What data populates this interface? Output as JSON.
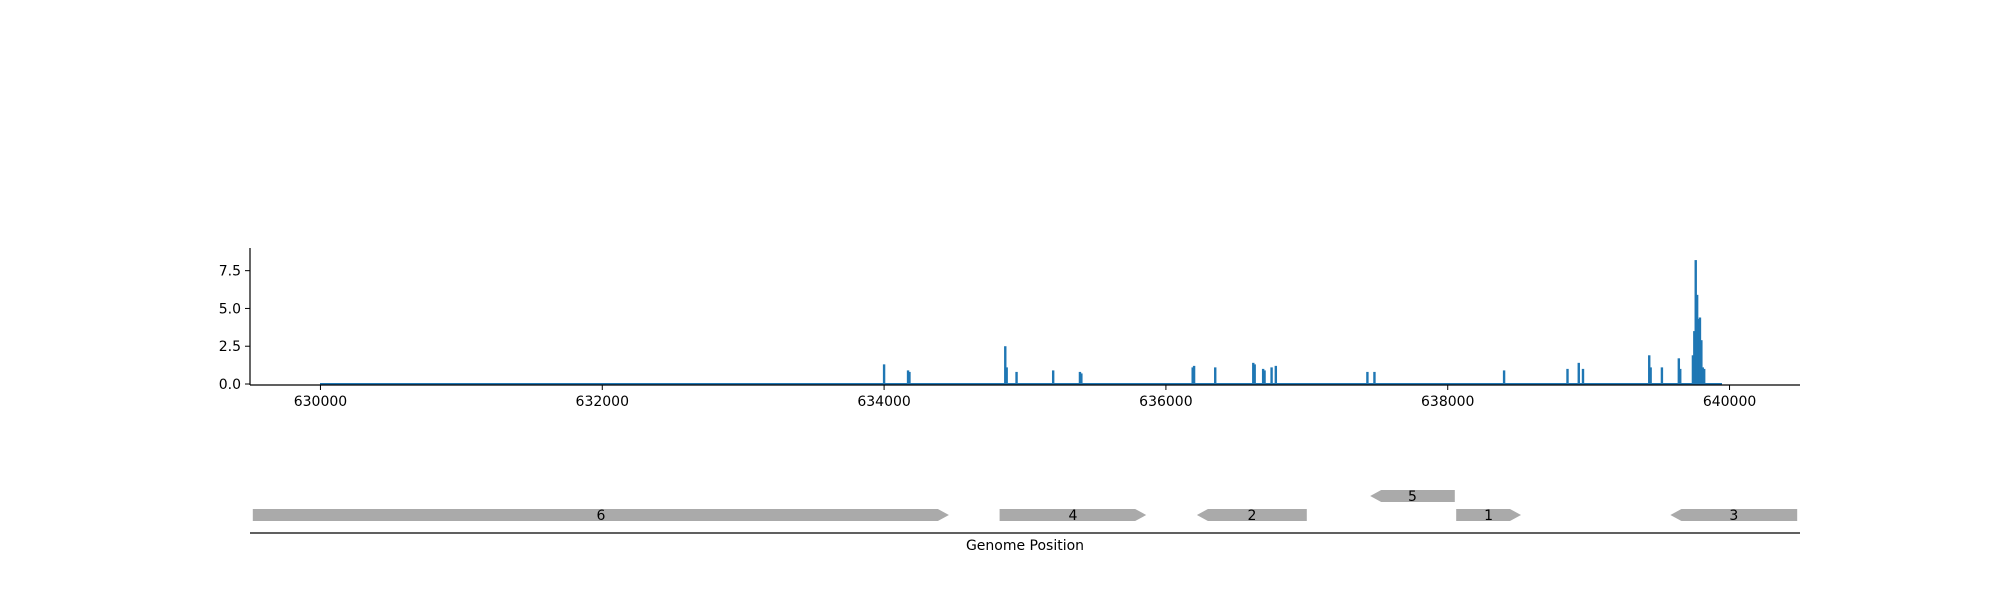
{
  "chart_data": [
    {
      "type": "bar",
      "xlabel": "",
      "ylabel": "",
      "xlim": [
        629500,
        640500
      ],
      "ylim": [
        0,
        9
      ],
      "x_ticks": [
        630000,
        632000,
        634000,
        636000,
        638000,
        640000
      ],
      "x_tick_labels": [
        "630000",
        "632000",
        "634000",
        "636000",
        "638000",
        "640000"
      ],
      "y_ticks": [
        0,
        2.5,
        5,
        7.5
      ],
      "y_tick_labels": [
        "0.0",
        "2.5",
        "5.0",
        "7.5"
      ],
      "grid": false,
      "color": "#1f77b4",
      "points": [
        {
          "x": 634000,
          "y": 1.3
        },
        {
          "x": 634170,
          "y": 0.9
        },
        {
          "x": 634180,
          "y": 0.8
        },
        {
          "x": 634860,
          "y": 2.5
        },
        {
          "x": 634870,
          "y": 1.1
        },
        {
          "x": 634940,
          "y": 0.8
        },
        {
          "x": 635200,
          "y": 0.9
        },
        {
          "x": 635390,
          "y": 0.8
        },
        {
          "x": 635400,
          "y": 0.7
        },
        {
          "x": 636190,
          "y": 1.1
        },
        {
          "x": 636200,
          "y": 1.2
        },
        {
          "x": 636350,
          "y": 1.1
        },
        {
          "x": 636620,
          "y": 1.4
        },
        {
          "x": 636630,
          "y": 1.3
        },
        {
          "x": 636690,
          "y": 1.0
        },
        {
          "x": 636700,
          "y": 0.9
        },
        {
          "x": 636750,
          "y": 1.1
        },
        {
          "x": 636780,
          "y": 1.2
        },
        {
          "x": 637430,
          "y": 0.8
        },
        {
          "x": 637480,
          "y": 0.8
        },
        {
          "x": 638400,
          "y": 0.9
        },
        {
          "x": 638850,
          "y": 1.0
        },
        {
          "x": 638930,
          "y": 1.4
        },
        {
          "x": 638960,
          "y": 1.0
        },
        {
          "x": 639430,
          "y": 1.9
        },
        {
          "x": 639440,
          "y": 1.1
        },
        {
          "x": 639520,
          "y": 1.1
        },
        {
          "x": 639640,
          "y": 1.7
        },
        {
          "x": 639650,
          "y": 1.0
        },
        {
          "x": 639740,
          "y": 1.9
        },
        {
          "x": 639750,
          "y": 3.5
        },
        {
          "x": 639760,
          "y": 8.2
        },
        {
          "x": 639770,
          "y": 5.9
        },
        {
          "x": 639780,
          "y": 4.3
        },
        {
          "x": 639790,
          "y": 4.4
        },
        {
          "x": 639800,
          "y": 2.9
        },
        {
          "x": 639810,
          "y": 1.1
        },
        {
          "x": 639820,
          "y": 1.0
        }
      ]
    },
    {
      "type": "gene-track",
      "xlabel": "Genome Position",
      "color": "#aaaaaa",
      "genes": [
        {
          "label": "6",
          "start": 629520,
          "end": 634460,
          "strand": "+",
          "row": 0
        },
        {
          "label": "4",
          "start": 634820,
          "end": 635860,
          "strand": "+",
          "row": 0
        },
        {
          "label": "2",
          "start": 636220,
          "end": 637000,
          "strand": "-",
          "row": 0
        },
        {
          "label": "5",
          "start": 637450,
          "end": 638050,
          "strand": "-",
          "row": 1
        },
        {
          "label": "1",
          "start": 638060,
          "end": 638520,
          "strand": "+",
          "row": 0
        },
        {
          "label": "3",
          "start": 639580,
          "end": 640480,
          "strand": "-",
          "row": 0
        }
      ]
    }
  ]
}
